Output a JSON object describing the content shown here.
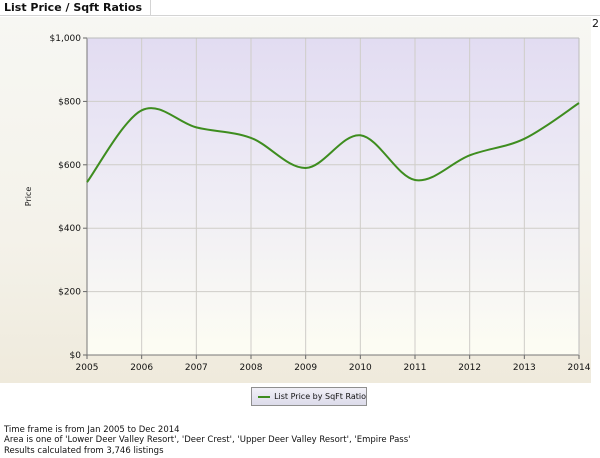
{
  "tab": {
    "title": "List Price / Sqft Ratios"
  },
  "corner_mark": "2",
  "chart_data": {
    "type": "line",
    "title": "",
    "xlabel": "",
    "ylabel": "Price",
    "x_ticks": [
      "2005",
      "2006",
      "2007",
      "2008",
      "2009",
      "2010",
      "2011",
      "2012",
      "2013",
      "2014"
    ],
    "y_ticks": [
      "$0",
      "$200",
      "$400",
      "$600",
      "$800",
      "$1,000"
    ],
    "xlim": [
      2005,
      2014
    ],
    "ylim": [
      0,
      1000
    ],
    "grid": true,
    "legend_position": "bottom-center",
    "series": [
      {
        "name": "List Price by SqFt Ratio",
        "color": "#3e8d1f",
        "x": [
          2005,
          2006,
          2007,
          2008,
          2009,
          2010,
          2011,
          2012,
          2013,
          2014
        ],
        "values": [
          545,
          772,
          718,
          685,
          590,
          693,
          552,
          630,
          682,
          795
        ]
      }
    ]
  },
  "footer": {
    "timeframe": "Time frame is from Jan 2005 to Dec 2014",
    "area": "Area is one of 'Lower Deer Valley Resort', 'Deer Crest', 'Upper Deer Valley Resort', 'Empire Pass'",
    "results": "Results calculated from 3,746 listings"
  }
}
